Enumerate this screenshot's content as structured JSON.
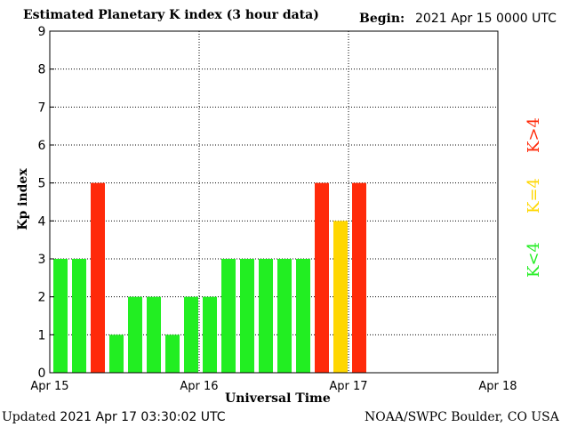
{
  "header": {
    "title": "Estimated Planetary K index (3 hour data)",
    "begin_label": "Begin:",
    "begin_value": "2021 Apr 15 0000 UTC"
  },
  "footer": {
    "updated_label": "Updated",
    "updated_value": "2021 Apr 17 03:30:02 UTC",
    "credit": "NOAA/SWPC Boulder, CO USA"
  },
  "key": {
    "below": "K<4",
    "equal": "K=4",
    "above": "K>4"
  },
  "colors": {
    "below": "#22ee22",
    "equal": "#ffd700",
    "above": "#ff2a0a"
  },
  "chart_data": {
    "type": "bar",
    "xlabel": "Universal Time",
    "ylabel": "Kp index",
    "ylim": [
      0,
      9
    ],
    "yticks": [
      "0",
      "1",
      "2",
      "3",
      "4",
      "5",
      "6",
      "7",
      "8",
      "9"
    ],
    "xticks": [
      "Apr 15",
      "Apr 16",
      "Apr 17",
      "Apr 18"
    ],
    "bins_per_day": 8,
    "grid": true,
    "values": [
      3,
      3,
      5,
      1,
      2,
      2,
      1,
      2,
      2,
      3,
      3,
      3,
      3,
      3,
      5,
      4,
      5
    ]
  }
}
